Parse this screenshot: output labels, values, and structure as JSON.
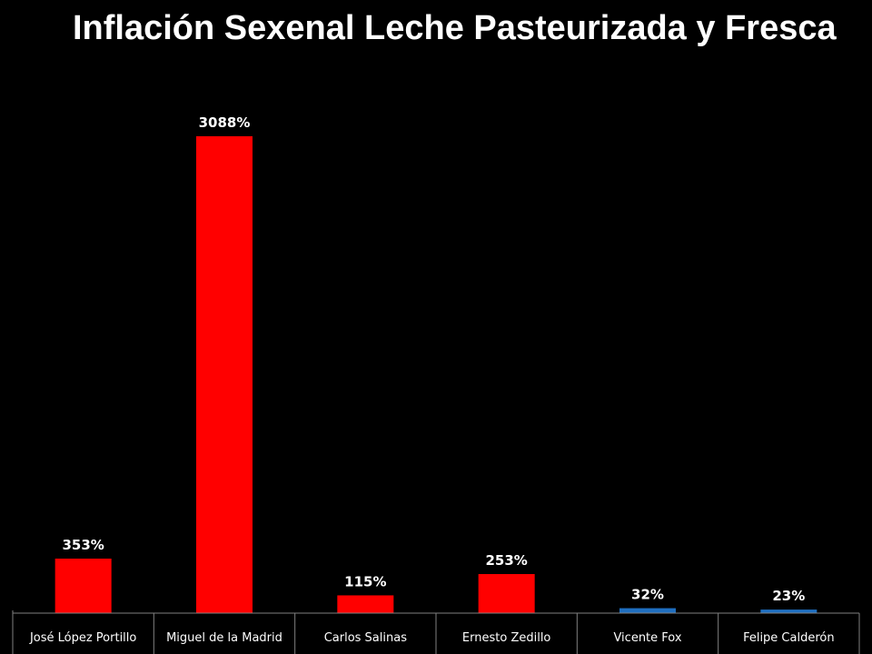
{
  "chart_data": {
    "type": "bar",
    "title": "Inflación Sexenal Leche Pasteurizada y Fresca",
    "xlabel": "",
    "ylabel": "",
    "categories": [
      "José López Portillo",
      "Miguel de la Madrid",
      "Carlos Salinas",
      "Ernesto Zedillo",
      "Vicente Fox",
      "Felipe Calderón"
    ],
    "values": [
      353,
      3088,
      115,
      253,
      32,
      23
    ],
    "data_labels": [
      "353%",
      "3088%",
      "115%",
      "253%",
      "32%",
      "23%"
    ],
    "bar_colors": [
      "#ff0000",
      "#ff0000",
      "#ff0000",
      "#ff0000",
      "#1f6fc0",
      "#1f6fc0"
    ],
    "axis_color": "#808080",
    "grid": false,
    "legend": "none",
    "ylim": [
      0,
      3200
    ]
  }
}
